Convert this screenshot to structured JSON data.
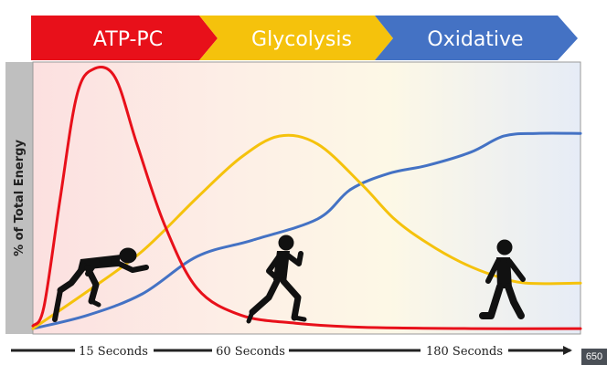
{
  "banner": [
    {
      "label": "ATP-PC",
      "color": "#e8101a"
    },
    {
      "label": "Glycolysis",
      "color": "#f5c20c"
    },
    {
      "label": "Oxidative",
      "color": "#4472c4"
    }
  ],
  "corner_badge": "650",
  "chart_data": {
    "type": "line",
    "title": "",
    "xlabel": "",
    "ylabel": "% of Total Energy",
    "ylim": [
      0,
      100
    ],
    "x_tick_labels": [
      "15 Seconds",
      "60 Seconds",
      "180 Seconds"
    ],
    "grid": false,
    "legend": "none",
    "series": [
      {
        "name": "ATP-PC",
        "color": "#e8101a",
        "points": [
          [
            0,
            2
          ],
          [
            2,
            9
          ],
          [
            5,
            50
          ],
          [
            8,
            88
          ],
          [
            11,
            98
          ],
          [
            15,
            95
          ],
          [
            19,
            70
          ],
          [
            24,
            40
          ],
          [
            30,
            16
          ],
          [
            38,
            6
          ],
          [
            48,
            3
          ],
          [
            60,
            1.5
          ],
          [
            80,
            1
          ],
          [
            100,
            1
          ]
        ]
      },
      {
        "name": "Glycolysis",
        "color": "#f5c20c",
        "points": [
          [
            0,
            1
          ],
          [
            10,
            15
          ],
          [
            20,
            30
          ],
          [
            30,
            50
          ],
          [
            38,
            65
          ],
          [
            45,
            73
          ],
          [
            52,
            70
          ],
          [
            60,
            55
          ],
          [
            66,
            42
          ],
          [
            72,
            33
          ],
          [
            78,
            26
          ],
          [
            84,
            21
          ],
          [
            90,
            18
          ],
          [
            100,
            18
          ]
        ]
      },
      {
        "name": "Oxidative",
        "color": "#4472c4",
        "points": [
          [
            0,
            1
          ],
          [
            10,
            6
          ],
          [
            20,
            14
          ],
          [
            30,
            28
          ],
          [
            40,
            34
          ],
          [
            52,
            42
          ],
          [
            58,
            53
          ],
          [
            65,
            59
          ],
          [
            72,
            62
          ],
          [
            80,
            67
          ],
          [
            86,
            73
          ],
          [
            92,
            74
          ],
          [
            100,
            74
          ]
        ]
      }
    ]
  }
}
